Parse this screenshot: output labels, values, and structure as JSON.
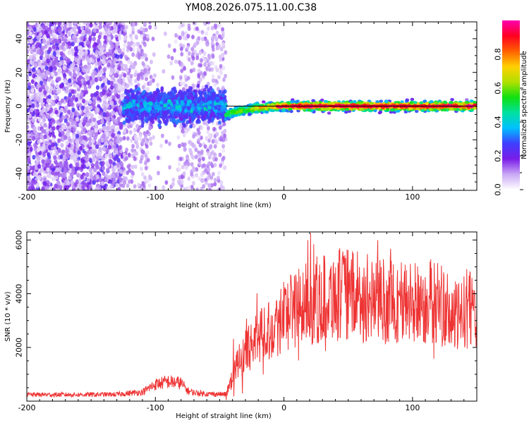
{
  "chart_data": [
    {
      "type": "heatmap",
      "title": "YM08.2026.075.11.00.C38",
      "xlabel": "Height of straight line (km)",
      "ylabel": "Frequency (Hz)",
      "xlim": [
        -200,
        150
      ],
      "ylim": [
        -50,
        50
      ],
      "x_ticks": [
        -200,
        -100,
        0,
        100
      ],
      "y_ticks": [
        -40,
        -20,
        0,
        20,
        40
      ],
      "reference_line_y": 0,
      "description_regions": [
        {
          "x_range": [
            -200,
            -125
          ],
          "density": "sparse broadband noise",
          "max_amplitude": 0.25
        },
        {
          "x_range": [
            -125,
            -45
          ],
          "density": "noise with weak concentration near 0 Hz",
          "max_amplitude": 0.45
        },
        {
          "x_range": [
            -45,
            150
          ],
          "density": "narrow band centered near 0 Hz",
          "max_amplitude": 1.0
        }
      ],
      "band_center_hz": [
        [
          -45,
          -5
        ],
        [
          -35,
          -3
        ],
        [
          -20,
          -1
        ],
        [
          0,
          0
        ],
        [
          50,
          0
        ],
        [
          100,
          0
        ],
        [
          150,
          0
        ]
      ],
      "colorbar": {
        "label": "Normalized spectral amplitude",
        "range": [
          0.0,
          1.0
        ],
        "ticks": [
          0.0,
          0.2,
          0.4,
          0.6,
          0.8
        ],
        "tick_labels": [
          "0.0",
          "0.2",
          "0.4",
          "0.6",
          "0.8"
        ],
        "colormap": [
          "#ffffff",
          "#c9a8f5",
          "#7a1ce8",
          "#3f3fff",
          "#00c0ff",
          "#00e0a0",
          "#10e010",
          "#b0e000",
          "#ffd000",
          "#ff6000",
          "#ff0020",
          "#ff00b0"
        ]
      }
    },
    {
      "type": "line",
      "xlabel": "Height of straight line (km)",
      "ylabel": "SNR (10 * v/v)",
      "xlim": [
        -200,
        150
      ],
      "ylim": [
        0,
        6300
      ],
      "x_ticks": [
        -200,
        -100,
        0,
        100
      ],
      "y_ticks": [
        2000,
        4000,
        6000
      ],
      "series": [
        {
          "name": "SNR",
          "color": "#ee3333",
          "envelope_x": [
            -200,
            -160,
            -130,
            -110,
            -100,
            -90,
            -80,
            -75,
            -70,
            -60,
            -50,
            -45,
            -40,
            -35,
            -30,
            -25,
            -20,
            -15,
            -10,
            -5,
            0,
            10,
            20,
            30,
            40,
            50,
            60,
            80,
            100,
            110,
            120,
            125,
            130,
            135,
            140,
            145,
            150
          ],
          "envelope_y": [
            250,
            250,
            260,
            350,
            650,
            750,
            700,
            400,
            330,
            280,
            270,
            260,
            1000,
            1550,
            1900,
            2200,
            2600,
            2800,
            2800,
            3000,
            3400,
            3650,
            3800,
            4000,
            4150,
            4150,
            4000,
            3900,
            3800,
            3800,
            3900,
            3600,
            3300,
            3200,
            3500,
            3700,
            3500
          ]
        }
      ]
    }
  ]
}
